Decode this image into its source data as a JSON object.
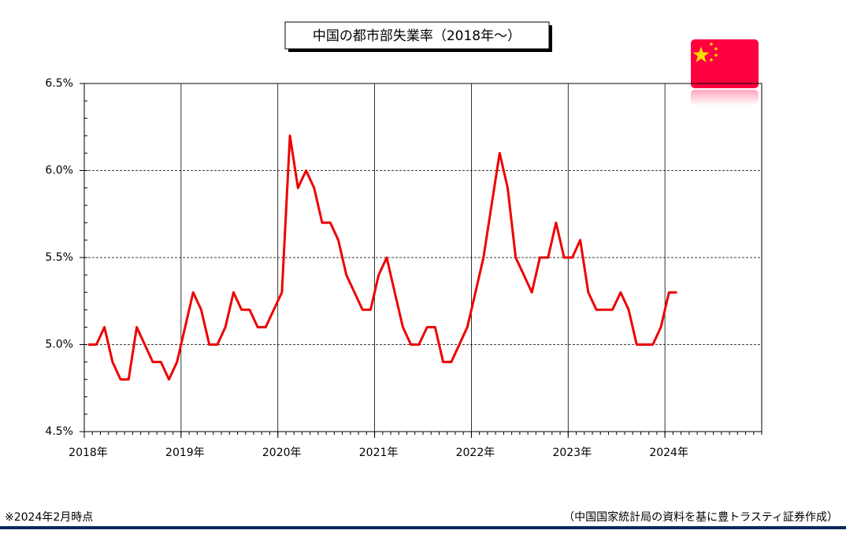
{
  "chart_data": {
    "type": "line",
    "title": "中国の都市部失業率（2018年～）",
    "note": "※2024年2月時点",
    "source": "（中国国家統計局の資料を基に豊トラスティ証券作成）",
    "x": [
      2018.042,
      2018.125,
      2018.208,
      2018.292,
      2018.375,
      2018.458,
      2018.542,
      2018.625,
      2018.708,
      2018.792,
      2018.875,
      2018.958,
      2019.042,
      2019.125,
      2019.208,
      2019.292,
      2019.375,
      2019.458,
      2019.542,
      2019.625,
      2019.708,
      2019.792,
      2019.875,
      2019.958,
      2020.042,
      2020.125,
      2020.208,
      2020.292,
      2020.375,
      2020.458,
      2020.542,
      2020.625,
      2020.708,
      2020.792,
      2020.875,
      2020.958,
      2021.042,
      2021.125,
      2021.208,
      2021.292,
      2021.375,
      2021.458,
      2021.542,
      2021.625,
      2021.708,
      2021.792,
      2021.875,
      2021.958,
      2022.042,
      2022.125,
      2022.208,
      2022.292,
      2022.375,
      2022.458,
      2022.542,
      2022.625,
      2022.708,
      2022.792,
      2022.875,
      2022.958,
      2023.042,
      2023.125,
      2023.208,
      2023.292,
      2023.375,
      2023.458,
      2023.542,
      2023.625,
      2023.708,
      2023.792,
      2023.875,
      2023.958,
      2024.042,
      2024.125
    ],
    "series": [
      {
        "name": "都市部失業率",
        "color": "#ee0000",
        "values": [
          5.0,
          5.0,
          5.1,
          4.9,
          4.8,
          4.8,
          5.1,
          5.0,
          4.9,
          4.9,
          4.8,
          4.9,
          5.1,
          5.3,
          5.2,
          5.0,
          5.0,
          5.1,
          5.3,
          5.2,
          5.2,
          5.1,
          5.1,
          5.2,
          5.3,
          6.2,
          5.9,
          6.0,
          5.9,
          5.7,
          5.7,
          5.6,
          5.4,
          5.3,
          5.2,
          5.2,
          5.4,
          5.5,
          5.3,
          5.1,
          5.0,
          5.0,
          5.1,
          5.1,
          4.9,
          4.9,
          5.0,
          5.1,
          5.3,
          5.5,
          5.8,
          6.1,
          5.9,
          5.5,
          5.4,
          5.3,
          5.5,
          5.5,
          5.7,
          5.5,
          5.5,
          5.6,
          5.3,
          5.2,
          5.2,
          5.2,
          5.3,
          5.2,
          5.0,
          5.0,
          5.0,
          5.1,
          5.3,
          5.3
        ]
      }
    ],
    "xlim": [
      2018,
      2025
    ],
    "xticks": [
      {
        "value": 2018,
        "label": "2018年"
      },
      {
        "value": 2019,
        "label": "2019年"
      },
      {
        "value": 2020,
        "label": "2020年"
      },
      {
        "value": 2021,
        "label": "2021年"
      },
      {
        "value": 2022,
        "label": "2022年"
      },
      {
        "value": 2023,
        "label": "2023年"
      },
      {
        "value": 2024,
        "label": "2024年"
      }
    ],
    "ylim": [
      4.5,
      6.5
    ],
    "yticks": [
      {
        "value": 4.5,
        "label": "4.5%"
      },
      {
        "value": 5.0,
        "label": "5.0%"
      },
      {
        "value": 5.5,
        "label": "5.5%"
      },
      {
        "value": 6.0,
        "label": "6.0%"
      },
      {
        "value": 6.5,
        "label": "6.5%"
      }
    ],
    "grid": true
  }
}
